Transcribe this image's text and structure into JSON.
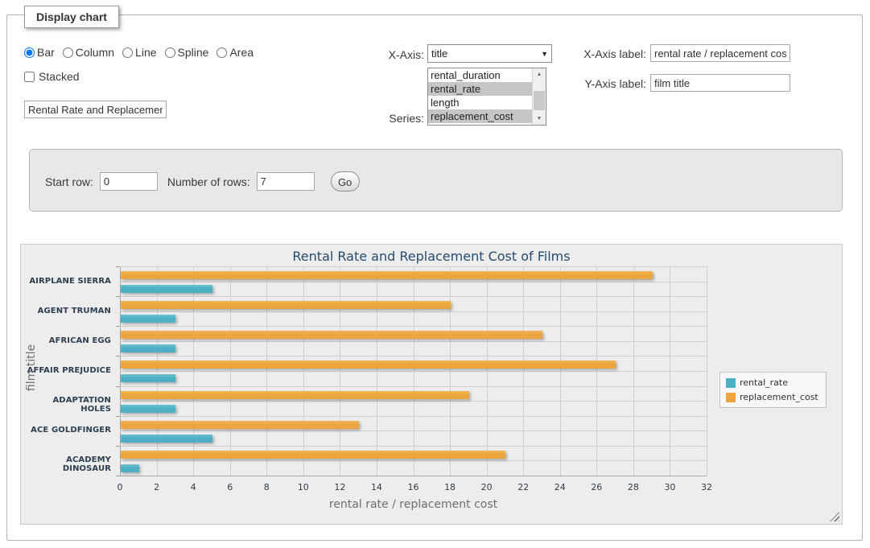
{
  "icons": {
    "dropdown_arrow": "▼",
    "scroll_up": "▲",
    "scroll_down": "▼"
  },
  "form": {
    "legend": "Display chart",
    "chart_types": [
      {
        "label": "Bar",
        "selected": true
      },
      {
        "label": "Column",
        "selected": false
      },
      {
        "label": "Line",
        "selected": false
      },
      {
        "label": "Spline",
        "selected": false
      },
      {
        "label": "Area",
        "selected": false
      }
    ],
    "stacked": {
      "label": "Stacked",
      "checked": false
    },
    "title_input_value": "Rental Rate and Replacement Cost of Films",
    "x_axis": {
      "label": "X-Axis:",
      "selected_value": "title"
    },
    "series": {
      "label": "Series:",
      "options": [
        {
          "label": "rental_duration",
          "selected": false
        },
        {
          "label": "rental_rate",
          "selected": true
        },
        {
          "label": "length",
          "selected": false
        },
        {
          "label": "replacement_cost",
          "selected": true
        }
      ]
    },
    "x_axis_label_field": {
      "label": "X-Axis label:",
      "value": "rental rate / replacement cost"
    },
    "y_axis_label_field": {
      "label": "Y-Axis label:",
      "value": "film title"
    }
  },
  "row_controls": {
    "start_row_label": "Start row:",
    "start_row_value": "0",
    "num_rows_label": "Number of rows:",
    "num_rows_value": "7",
    "go_label": "Go"
  },
  "chart_data": {
    "type": "bar",
    "orientation": "horizontal",
    "title": "Rental Rate and Replacement Cost of Films",
    "xlabel": "rental rate / replacement cost",
    "ylabel": "film title",
    "categories": [
      "AIRPLANE SIERRA",
      "AGENT TRUMAN",
      "AFRICAN EGG",
      "AFFAIR PREJUDICE",
      "ADAPTATION HOLES",
      "ACE GOLDFINGER",
      "ACADEMY DINOSAUR"
    ],
    "series": [
      {
        "name": "rental_rate",
        "color": "#4dafc3",
        "color_top": "#6cc2d2",
        "values": [
          5,
          3,
          3,
          3,
          3,
          5,
          1
        ]
      },
      {
        "name": "replacement_cost",
        "color": "#eca63d",
        "color_top": "#f2b558",
        "values": [
          29,
          18,
          23,
          27,
          19,
          13,
          21
        ]
      }
    ],
    "display_row_order": [
      "replacement_cost",
      "rental_rate"
    ],
    "xlim": [
      0,
      32
    ],
    "xtick_step": 2,
    "grid": true,
    "legend_position": "right"
  }
}
